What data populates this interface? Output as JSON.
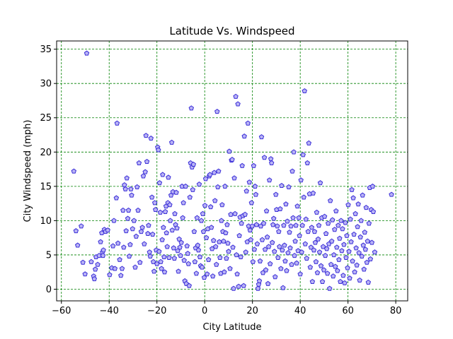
{
  "chart_data": {
    "type": "scatter",
    "title": "Latitude Vs. Windspeed",
    "xlabel": "City Latitude",
    "ylabel": "City Windspeed (mph)",
    "xlim": [
      -62,
      85
    ],
    "ylim": [
      -1.7,
      36.2
    ],
    "xticks": [
      -60,
      -40,
      -20,
      0,
      20,
      40,
      60,
      80
    ],
    "yticks": [
      0,
      5,
      10,
      15,
      20,
      25,
      30,
      35
    ],
    "grid": true,
    "marker": "pentagon",
    "marker_edge_color": "#3b2fd8",
    "marker_face_color": "#b9b3f5",
    "grid_color": "#008000",
    "points": [
      [
        -54.8,
        17.2
      ],
      [
        -53.9,
        8.5
      ],
      [
        -53.2,
        6.4
      ],
      [
        -51.7,
        9.2
      ],
      [
        -51.0,
        3.9
      ],
      [
        -50.1,
        2.2
      ],
      [
        -49.4,
        34.4
      ],
      [
        -47.5,
        4.0
      ],
      [
        -46.5,
        1.9
      ],
      [
        -46.2,
        1.5
      ],
      [
        -45.8,
        2.9
      ],
      [
        -45.5,
        4.7
      ],
      [
        -44.8,
        3.6
      ],
      [
        -44.2,
        4.9
      ],
      [
        -43.6,
        6.9
      ],
      [
        -43.1,
        8.2
      ],
      [
        -42.8,
        5.4
      ],
      [
        -42.6,
        4.9
      ],
      [
        -42.4,
        5.7
      ],
      [
        -42.0,
        8.7
      ],
      [
        -41.5,
        8.4
      ],
      [
        -40.6,
        8.6
      ],
      [
        -39.8,
        2.1
      ],
      [
        -38.9,
        3.1
      ],
      [
        -38.4,
        6.3
      ],
      [
        -38.0,
        10.0
      ],
      [
        -37.6,
        3.0
      ],
      [
        -37.0,
        13.3
      ],
      [
        -36.7,
        24.2
      ],
      [
        -36.3,
        6.7
      ],
      [
        -35.6,
        4.3
      ],
      [
        -35.1,
        2.0
      ],
      [
        -34.6,
        3.0
      ],
      [
        -34.2,
        11.5
      ],
      [
        -33.9,
        6.1
      ],
      [
        -33.6,
        15.2
      ],
      [
        -33.2,
        14.6
      ],
      [
        -32.9,
        8.5
      ],
      [
        -32.6,
        16.2
      ],
      [
        -32.2,
        10.3
      ],
      [
        -31.9,
        11.5
      ],
      [
        -31.6,
        4.8
      ],
      [
        -31.2,
        6.5
      ],
      [
        -30.9,
        14.6
      ],
      [
        -30.6,
        13.7
      ],
      [
        -30.2,
        8.8
      ],
      [
        -29.6,
        10.0
      ],
      [
        -29.1,
        3.2
      ],
      [
        -28.7,
        7.7
      ],
      [
        -28.3,
        14.9
      ],
      [
        -27.9,
        11.5
      ],
      [
        -27.5,
        18.4
      ],
      [
        -27.1,
        3.9
      ],
      [
        -26.6,
        8.4
      ],
      [
        -26.1,
        9.0
      ],
      [
        -25.7,
        16.5
      ],
      [
        -25.3,
        6.6
      ],
      [
        -24.9,
        17.1
      ],
      [
        -24.6,
        22.4
      ],
      [
        -24.2,
        18.6
      ],
      [
        -23.8,
        8.1
      ],
      [
        -23.5,
        9.3
      ],
      [
        -23.1,
        5.4
      ],
      [
        -22.8,
        4.8
      ],
      [
        -22.5,
        22.0
      ],
      [
        -22.1,
        13.4
      ],
      [
        -21.8,
        8.0
      ],
      [
        -21.5,
        4.0
      ],
      [
        -21.2,
        2.6
      ],
      [
        -20.9,
        12.6
      ],
      [
        -20.6,
        11.6
      ],
      [
        -20.3,
        5.7
      ],
      [
        -20.0,
        3.7
      ],
      [
        -19.7,
        20.7
      ],
      [
        -19.4,
        20.3
      ],
      [
        -19.1,
        5.5
      ],
      [
        -18.9,
        15.5
      ],
      [
        -18.6,
        11.2
      ],
      [
        -18.4,
        4.0
      ],
      [
        -18.1,
        3.0
      ],
      [
        -17.8,
        7.2
      ],
      [
        -17.6,
        16.7
      ],
      [
        -17.3,
        9.0
      ],
      [
        -17.0,
        4.7
      ],
      [
        -16.8,
        2.5
      ],
      [
        -16.5,
        11.3
      ],
      [
        -16.2,
        12.1
      ],
      [
        -16.0,
        8.2
      ],
      [
        -15.7,
        6.2
      ],
      [
        -15.4,
        12.6
      ],
      [
        -15.2,
        16.3
      ],
      [
        -14.9,
        4.6
      ],
      [
        -14.6,
        12.3
      ],
      [
        -14.4,
        10.0
      ],
      [
        -14.1,
        13.7
      ],
      [
        -13.8,
        21.4
      ],
      [
        -13.6,
        8.6
      ],
      [
        -13.3,
        14.2
      ],
      [
        -13.0,
        6.0
      ],
      [
        -12.7,
        4.5
      ],
      [
        -12.5,
        11.0
      ],
      [
        -12.2,
        9.4
      ],
      [
        -11.9,
        14.1
      ],
      [
        -11.6,
        8.9
      ],
      [
        -11.3,
        5.6
      ],
      [
        -11.0,
        2.6
      ],
      [
        -10.7,
        7.3
      ],
      [
        -10.4,
        6.1
      ],
      [
        -10.1,
        4.9
      ],
      [
        -9.8,
        6.8
      ],
      [
        -9.5,
        15.0
      ],
      [
        -9.2,
        10.4
      ],
      [
        -8.9,
        12.6
      ],
      [
        -8.6,
        4.2
      ],
      [
        -8.3,
        1.2
      ],
      [
        -8.0,
        15.0
      ],
      [
        -7.7,
        0.8
      ],
      [
        -7.4,
        6.3
      ],
      [
        -7.1,
        5.2
      ],
      [
        -6.8,
        3.7
      ],
      [
        -6.5,
        0.5
      ],
      [
        -6.2,
        13.4
      ],
      [
        -5.9,
        18.4
      ],
      [
        -5.6,
        26.4
      ],
      [
        -5.3,
        17.8
      ],
      [
        -5.0,
        14.5
      ],
      [
        -4.7,
        18.2
      ],
      [
        -4.4,
        8.4
      ],
      [
        -4.1,
        4.0
      ],
      [
        -3.8,
        6.0
      ],
      [
        -3.5,
        2.3
      ],
      [
        -3.2,
        10.4
      ],
      [
        -2.9,
        6.4
      ],
      [
        -2.6,
        5.7
      ],
      [
        -2.3,
        15.3
      ],
      [
        -2.0,
        4.7
      ],
      [
        -1.7,
        3.4
      ],
      [
        -1.4,
        10.0
      ],
      [
        -1.1,
        3.2
      ],
      [
        -0.8,
        11.0
      ],
      [
        -0.5,
        8.4
      ],
      [
        -0.2,
        1.7
      ],
      [
        0.1,
        12.2
      ],
      [
        0.4,
        16.1
      ],
      [
        0.7,
        7.5
      ],
      [
        1.0,
        2.2
      ],
      [
        1.3,
        8.8
      ],
      [
        1.6,
        4.3
      ],
      [
        1.9,
        16.5
      ],
      [
        2.2,
        16.7
      ],
      [
        2.5,
        12.0
      ],
      [
        2.8,
        9.0
      ],
      [
        3.1,
        5.9
      ],
      [
        3.4,
        1.9
      ],
      [
        3.7,
        7.1
      ],
      [
        4.0,
        17.0
      ],
      [
        4.3,
        12.9
      ],
      [
        4.6,
        6.2
      ],
      [
        4.9,
        3.6
      ],
      [
        5.2,
        25.9
      ],
      [
        5.5,
        14.9
      ],
      [
        5.8,
        17.2
      ],
      [
        6.1,
        6.9
      ],
      [
        6.4,
        4.6
      ],
      [
        6.7,
        2.3
      ],
      [
        7.0,
        10.0
      ],
      [
        7.3,
        12.3
      ],
      [
        7.6,
        8.4
      ],
      [
        7.9,
        7.0
      ],
      [
        8.2,
        2.5
      ],
      [
        8.5,
        15.0
      ],
      [
        8.8,
        8.2
      ],
      [
        9.1,
        4.5
      ],
      [
        9.4,
        9.4
      ],
      [
        9.7,
        6.7
      ],
      [
        10.0,
        5.5
      ],
      [
        10.3,
        20.1
      ],
      [
        10.6,
        3.0
      ],
      [
        10.9,
        10.9
      ],
      [
        11.2,
        18.8
      ],
      [
        11.5,
        18.9
      ],
      [
        11.8,
        6.1
      ],
      [
        12.1,
        0.1
      ],
      [
        12.4,
        16.2
      ],
      [
        12.7,
        11.0
      ],
      [
        13.0,
        28.1
      ],
      [
        13.3,
        5.0
      ],
      [
        13.6,
        2.2
      ],
      [
        13.9,
        27.0
      ],
      [
        14.2,
        0.4
      ],
      [
        14.5,
        7.8
      ],
      [
        14.8,
        10.5
      ],
      [
        15.1,
        4.7
      ],
      [
        15.4,
        9.6
      ],
      [
        15.7,
        18.0
      ],
      [
        16.0,
        10.7
      ],
      [
        16.3,
        0.5
      ],
      [
        16.6,
        22.3
      ],
      [
        16.9,
        10.9
      ],
      [
        17.2,
        5.4
      ],
      [
        17.5,
        14.3
      ],
      [
        17.8,
        6.9
      ],
      [
        18.1,
        24.2
      ],
      [
        18.4,
        9.2
      ],
      [
        18.7,
        15.6
      ],
      [
        19.0,
        8.6
      ],
      [
        19.3,
        7.2
      ],
      [
        19.6,
        12.6
      ],
      [
        19.9,
        9.2
      ],
      [
        20.2,
        4.0
      ],
      [
        20.5,
        18.0
      ],
      [
        20.8,
        5.8
      ],
      [
        21.1,
        15.0
      ],
      [
        21.4,
        13.8
      ],
      [
        21.7,
        9.4
      ],
      [
        22.0,
        6.6
      ],
      [
        22.3,
        0.1
      ],
      [
        22.6,
        0.7
      ],
      [
        22.9,
        1.2
      ],
      [
        23.2,
        4.1
      ],
      [
        23.5,
        9.2
      ],
      [
        23.8,
        22.2
      ],
      [
        24.1,
        7.2
      ],
      [
        24.4,
        2.4
      ],
      [
        24.7,
        9.6
      ],
      [
        25.0,
        19.2
      ],
      [
        25.3,
        5.8
      ],
      [
        25.6,
        2.8
      ],
      [
        25.9,
        11.4
      ],
      [
        26.2,
        7.6
      ],
      [
        26.5,
        0.8
      ],
      [
        26.8,
        6.2
      ],
      [
        27.1,
        15.9
      ],
      [
        27.4,
        3.7
      ],
      [
        27.7,
        19.0
      ],
      [
        28.0,
        18.4
      ],
      [
        28.3,
        6.8
      ],
      [
        28.6,
        9.4
      ],
      [
        28.9,
        10.3
      ],
      [
        29.2,
        5.5
      ],
      [
        29.5,
        1.8
      ],
      [
        29.8,
        13.8
      ],
      [
        30.1,
        11.6
      ],
      [
        30.4,
        9.2
      ],
      [
        30.7,
        4.6
      ],
      [
        31.0,
        8.4
      ],
      [
        31.3,
        6.2
      ],
      [
        31.6,
        11.7
      ],
      [
        31.9,
        3.0
      ],
      [
        32.2,
        15.1
      ],
      [
        32.5,
        5.7
      ],
      [
        32.8,
        0.2
      ],
      [
        33.1,
        9.3
      ],
      [
        33.4,
        6.4
      ],
      [
        33.7,
        4.1
      ],
      [
        34.0,
        12.4
      ],
      [
        34.3,
        2.7
      ],
      [
        34.6,
        9.9
      ],
      [
        34.9,
        5.3
      ],
      [
        35.2,
        14.9
      ],
      [
        35.5,
        8.3
      ],
      [
        35.8,
        6.0
      ],
      [
        36.1,
        9.2
      ],
      [
        36.4,
        3.6
      ],
      [
        36.7,
        17.2
      ],
      [
        37.0,
        10.4
      ],
      [
        37.3,
        20.0
      ],
      [
        37.6,
        4.9
      ],
      [
        37.9,
        7.0
      ],
      [
        38.2,
        9.3
      ],
      [
        38.5,
        3.8
      ],
      [
        38.8,
        12.1
      ],
      [
        39.1,
        5.6
      ],
      [
        39.4,
        10.4
      ],
      [
        39.7,
        7.8
      ],
      [
        40.0,
        2.2
      ],
      [
        40.3,
        15.9
      ],
      [
        40.6,
        5.4
      ],
      [
        40.9,
        9.3
      ],
      [
        41.2,
        19.6
      ],
      [
        41.5,
        13.4
      ],
      [
        41.8,
        28.9
      ],
      [
        42.1,
        6.6
      ],
      [
        42.4,
        10.2
      ],
      [
        42.7,
        4.5
      ],
      [
        43.0,
        18.4
      ],
      [
        43.3,
        8.4
      ],
      [
        43.6,
        21.3
      ],
      [
        43.9,
        13.9
      ],
      [
        44.2,
        3.2
      ],
      [
        44.5,
        6.1
      ],
      [
        44.8,
        9.0
      ],
      [
        45.1,
        1.1
      ],
      [
        45.4,
        14.0
      ],
      [
        45.7,
        5.7
      ],
      [
        46.0,
        8.4
      ],
      [
        46.3,
        6.8
      ],
      [
        46.6,
        4.0
      ],
      [
        46.9,
        11.2
      ],
      [
        47.2,
        2.4
      ],
      [
        47.5,
        7.3
      ],
      [
        47.8,
        9.3
      ],
      [
        48.1,
        5.4
      ],
      [
        48.4,
        15.5
      ],
      [
        48.7,
        3.4
      ],
      [
        49.0,
        10.4
      ],
      [
        49.3,
        1.1
      ],
      [
        49.6,
        6.2
      ],
      [
        49.9,
        2.8
      ],
      [
        50.2,
        10.6
      ],
      [
        50.5,
        4.9
      ],
      [
        50.8,
        8.1
      ],
      [
        51.1,
        5.9
      ],
      [
        51.4,
        2.3
      ],
      [
        51.7,
        9.6
      ],
      [
        52.0,
        6.6
      ],
      [
        52.3,
        0.1
      ],
      [
        52.6,
        12.9
      ],
      [
        52.9,
        3.6
      ],
      [
        53.2,
        7.0
      ],
      [
        53.5,
        10.1
      ],
      [
        53.8,
        1.9
      ],
      [
        54.1,
        5.0
      ],
      [
        54.4,
        8.7
      ],
      [
        54.7,
        3.3
      ],
      [
        55.0,
        11.4
      ],
      [
        55.3,
        6.1
      ],
      [
        55.6,
        2.7
      ],
      [
        55.9,
        9.3
      ],
      [
        56.2,
        4.3
      ],
      [
        56.5,
        7.4
      ],
      [
        56.8,
        1.1
      ],
      [
        57.1,
        10.0
      ],
      [
        57.4,
        5.6
      ],
      [
        57.7,
        8.8
      ],
      [
        58.0,
        2.0
      ],
      [
        58.3,
        6.5
      ],
      [
        58.6,
        0.9
      ],
      [
        58.9,
        9.7
      ],
      [
        59.2,
        4.6
      ],
      [
        59.5,
        7.8
      ],
      [
        59.8,
        3.1
      ],
      [
        60.1,
        12.3
      ],
      [
        60.4,
        5.5
      ],
      [
        60.7,
        1.6
      ],
      [
        61.0,
        10.2
      ],
      [
        61.3,
        6.9
      ],
      [
        61.6,
        14.5
      ],
      [
        61.9,
        4.1
      ],
      [
        62.2,
        13.3
      ],
      [
        62.5,
        8.0
      ],
      [
        62.8,
        2.5
      ],
      [
        63.1,
        11.0
      ],
      [
        63.4,
        6.0
      ],
      [
        63.7,
        3.5
      ],
      [
        64.0,
        9.1
      ],
      [
        64.3,
        12.4
      ],
      [
        64.6,
        5.3
      ],
      [
        64.9,
        1.3
      ],
      [
        65.2,
        7.6
      ],
      [
        65.5,
        10.0
      ],
      [
        65.8,
        4.8
      ],
      [
        66.1,
        13.7
      ],
      [
        66.4,
        6.4
      ],
      [
        66.7,
        2.9
      ],
      [
        67.0,
        8.3
      ],
      [
        67.3,
        5.8
      ],
      [
        67.6,
        11.9
      ],
      [
        67.9,
        3.9
      ],
      [
        68.2,
        7.0
      ],
      [
        68.5,
        1.0
      ],
      [
        68.8,
        9.6
      ],
      [
        69.1,
        14.8
      ],
      [
        69.4,
        4.4
      ],
      [
        69.7,
        11.6
      ],
      [
        70.0,
        6.8
      ],
      [
        70.3,
        15.0
      ],
      [
        70.6,
        11.3
      ],
      [
        71.2,
        5.4
      ],
      [
        78.2,
        13.8
      ]
    ]
  }
}
